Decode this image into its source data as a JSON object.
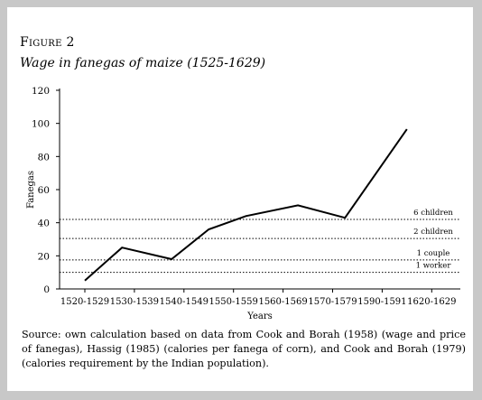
{
  "figure": {
    "label": "Figure 2",
    "title": "Wage in fanegas of maize (1525-1629)",
    "source": "Source: own calculation based on data from Cook and Borah (1958) (wage and price of fanegas), Hassig (1985) (calories per fanega of corn), and Cook and Borah (1979) (calories requirement by the Indian population)."
  },
  "chart_data": {
    "type": "line",
    "title": "Wage in fanegas of maize (1525-1629)",
    "xlabel": "Years",
    "ylabel": "Fanegas",
    "categories": [
      "1520-1529",
      "1530-1539",
      "1540-1549",
      "1550-1559",
      "1560-1569",
      "1570-1579",
      "1590-1591",
      "1620-1629"
    ],
    "x_positions": [
      0,
      1,
      2,
      3,
      4,
      5,
      6,
      7
    ],
    "series": [
      {
        "points": [
          [
            0,
            5
          ],
          [
            0.75,
            25
          ],
          [
            1.75,
            18
          ],
          [
            2.5,
            36
          ],
          [
            3.25,
            44
          ],
          [
            4.3,
            50.5
          ],
          [
            5.25,
            43
          ],
          [
            6.5,
            96.5
          ]
        ],
        "color": "#000000"
      }
    ],
    "reference_lines": [
      {
        "label": "6 children",
        "value": 42
      },
      {
        "label": "2 children",
        "value": 30.5
      },
      {
        "label": "1 couple",
        "value": 17.5
      },
      {
        "label": "1 worker",
        "value": 10
      }
    ],
    "ylim": [
      0,
      120
    ],
    "yticks": [
      0,
      20,
      40,
      60,
      80,
      100,
      120
    ],
    "grid": false
  }
}
